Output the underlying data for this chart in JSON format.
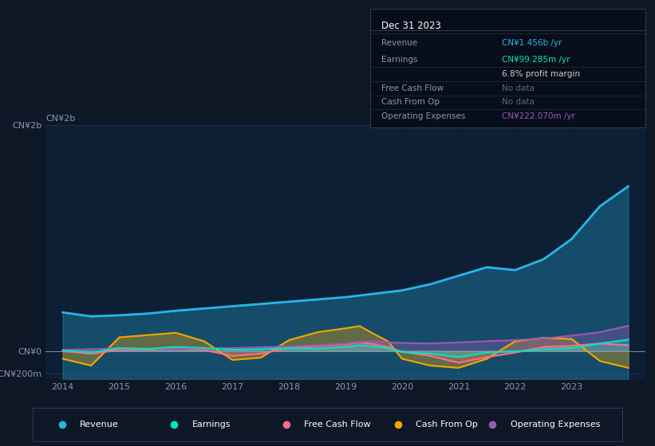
{
  "background_color": "#0e1726",
  "plot_bg_color": "#0e1726",
  "chart_bg_color": "#0d1f35",
  "grid_color": "#1a3050",
  "years": [
    2014,
    2014.5,
    2015,
    2015.5,
    2016,
    2016.5,
    2017,
    2017.5,
    2018,
    2018.5,
    2019,
    2019.25,
    2019.5,
    2019.75,
    2020,
    2020.5,
    2021,
    2021.5,
    2022,
    2022.5,
    2023,
    2023.5,
    2024
  ],
  "revenue": [
    340,
    305,
    315,
    330,
    355,
    375,
    395,
    415,
    435,
    455,
    475,
    490,
    505,
    520,
    535,
    590,
    665,
    740,
    715,
    810,
    990,
    1280,
    1456
  ],
  "earnings": [
    5,
    -15,
    25,
    18,
    35,
    25,
    10,
    15,
    25,
    20,
    35,
    50,
    40,
    25,
    -10,
    -25,
    -55,
    -15,
    -5,
    15,
    25,
    65,
    99
  ],
  "free_cash_flow": [
    -3,
    -25,
    8,
    12,
    18,
    8,
    -45,
    -25,
    28,
    45,
    58,
    75,
    60,
    35,
    -8,
    -45,
    -105,
    -55,
    -15,
    35,
    45,
    65,
    50
  ],
  "cash_from_op": [
    -70,
    -130,
    120,
    140,
    160,
    85,
    -80,
    -60,
    95,
    165,
    200,
    220,
    150,
    85,
    -70,
    -130,
    -150,
    -70,
    85,
    115,
    105,
    -90,
    -150
  ],
  "operating_expenses": [
    8,
    15,
    22,
    18,
    15,
    22,
    25,
    32,
    40,
    50,
    65,
    80,
    85,
    75,
    70,
    65,
    75,
    85,
    95,
    110,
    135,
    165,
    222
  ],
  "ylim": [
    -250,
    2000
  ],
  "yticks": [
    -200,
    0,
    2000
  ],
  "ytick_labels": [
    "-CN¥200m",
    "CN¥0",
    "CN¥2b"
  ],
  "xlabel_years": [
    2014,
    2015,
    2016,
    2017,
    2018,
    2019,
    2020,
    2021,
    2022,
    2023
  ],
  "revenue_color": "#29b5e8",
  "earnings_color": "#00e5c0",
  "free_cash_flow_color": "#ff6b8a",
  "cash_from_op_color": "#f0a500",
  "operating_expenses_color": "#9b59b6",
  "tooltip_title": "Dec 31 2023",
  "legend_items": [
    {
      "label": "Revenue",
      "color": "#29b5e8"
    },
    {
      "label": "Earnings",
      "color": "#00e5c0"
    },
    {
      "label": "Free Cash Flow",
      "color": "#ff6b8a"
    },
    {
      "label": "Cash From Op",
      "color": "#f0a500"
    },
    {
      "label": "Operating Expenses",
      "color": "#9b59b6"
    }
  ]
}
